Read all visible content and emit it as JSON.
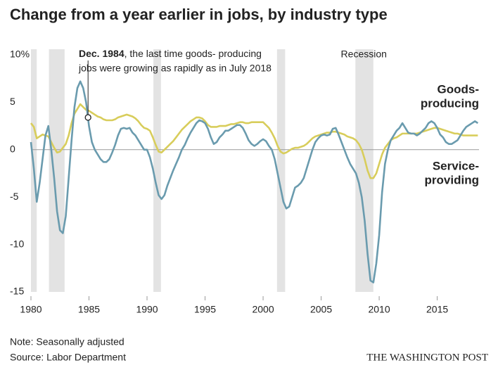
{
  "chart_data": {
    "type": "line",
    "title": "Change from a year earlier in jobs, by industry type",
    "xlim": [
      1980,
      2018.6
    ],
    "xticks": [
      1980,
      1985,
      1990,
      1995,
      2000,
      2005,
      2010,
      2015
    ],
    "ylim": [
      -15,
      10
    ],
    "yticks": [
      {
        "value": 10,
        "label": "10%"
      },
      5,
      0,
      -5,
      -10,
      -15
    ],
    "grid": false,
    "x": [
      1980,
      1980.25,
      1980.5,
      1980.75,
      1981,
      1981.25,
      1981.5,
      1981.75,
      1982,
      1982.25,
      1982.5,
      1982.75,
      1983,
      1983.25,
      1983.5,
      1983.75,
      1984,
      1984.25,
      1984.5,
      1984.75,
      1985,
      1985.25,
      1985.5,
      1985.75,
      1986,
      1986.25,
      1986.5,
      1986.75,
      1987,
      1987.25,
      1987.5,
      1987.75,
      1988,
      1988.25,
      1988.5,
      1988.75,
      1989,
      1989.25,
      1989.5,
      1989.75,
      1990,
      1990.25,
      1990.5,
      1990.75,
      1991,
      1991.25,
      1991.5,
      1991.75,
      1992,
      1992.25,
      1992.5,
      1992.75,
      1993,
      1993.25,
      1993.5,
      1993.75,
      1994,
      1994.25,
      1994.5,
      1994.75,
      1995,
      1995.25,
      1995.5,
      1995.75,
      1996,
      1996.25,
      1996.5,
      1996.75,
      1997,
      1997.25,
      1997.5,
      1997.75,
      1998,
      1998.25,
      1998.5,
      1998.75,
      1999,
      1999.25,
      1999.5,
      1999.75,
      2000,
      2000.25,
      2000.5,
      2000.75,
      2001,
      2001.25,
      2001.5,
      2001.75,
      2002,
      2002.25,
      2002.5,
      2002.75,
      2003,
      2003.25,
      2003.5,
      2003.75,
      2004,
      2004.25,
      2004.5,
      2004.75,
      2005,
      2005.25,
      2005.5,
      2005.75,
      2006,
      2006.25,
      2006.5,
      2006.75,
      2007,
      2007.25,
      2007.5,
      2007.75,
      2008,
      2008.25,
      2008.5,
      2008.75,
      2009,
      2009.25,
      2009.5,
      2009.75,
      2010,
      2010.25,
      2010.5,
      2010.75,
      2011,
      2011.25,
      2011.5,
      2011.75,
      2012,
      2012.25,
      2012.5,
      2012.75,
      2013,
      2013.25,
      2013.5,
      2013.75,
      2014,
      2014.25,
      2014.5,
      2014.75,
      2015,
      2015.25,
      2015.5,
      2015.75,
      2016,
      2016.25,
      2016.5,
      2016.75,
      2017,
      2017.25,
      2017.5,
      2017.75,
      2018,
      2018.25,
      2018.5
    ],
    "series": [
      {
        "name": [
          "Goods-",
          "producing"
        ],
        "color": "#6a9bae",
        "values": [
          0.8,
          -2,
          -5.5,
          -3.5,
          -1,
          1.5,
          2.5,
          0,
          -3,
          -6.5,
          -8.5,
          -8.8,
          -7,
          -3,
          1,
          4.5,
          6.5,
          7.2,
          6.5,
          5,
          2.5,
          0.8,
          0,
          -0.5,
          -1,
          -1.3,
          -1.3,
          -1,
          -0.3,
          0.5,
          1.5,
          2.2,
          2.3,
          2.2,
          2.3,
          1.8,
          1.5,
          1,
          0.5,
          0,
          0,
          -0.8,
          -2,
          -3.5,
          -4.8,
          -5.2,
          -4.8,
          -3.8,
          -3,
          -2.2,
          -1.5,
          -0.8,
          0,
          0.5,
          1.2,
          1.8,
          2.3,
          2.8,
          3.1,
          3,
          2.8,
          2.2,
          1.3,
          0.6,
          0.8,
          1.3,
          1.6,
          2,
          2,
          2.2,
          2.4,
          2.6,
          2.6,
          2.3,
          1.7,
          1,
          0.6,
          0.4,
          0.6,
          0.9,
          1.1,
          0.9,
          0.4,
          0,
          -1,
          -2.5,
          -4,
          -5.5,
          -6.2,
          -6,
          -5,
          -4,
          -3.8,
          -3.5,
          -3,
          -2,
          -1,
          0,
          0.8,
          1.2,
          1.5,
          1.6,
          1.5,
          1.6,
          2.2,
          2.3,
          1.6,
          0.8,
          0,
          -0.8,
          -1.5,
          -2,
          -2.5,
          -3.5,
          -5,
          -7.5,
          -11,
          -13.8,
          -14,
          -12,
          -9,
          -4.5,
          -1.5,
          0,
          1,
          1.5,
          2,
          2.3,
          2.8,
          2.3,
          1.8,
          1.7,
          1.7,
          1.5,
          1.7,
          2,
          2.3,
          2.8,
          3,
          2.8,
          2.3,
          1.6,
          1.3,
          0.8,
          0.6,
          0.6,
          0.8,
          1,
          1.5,
          2,
          2.4,
          2.6,
          2.8,
          3,
          2.8
        ]
      },
      {
        "name": [
          "Service-",
          "providing"
        ],
        "color": "#d8cd5b",
        "values": [
          2.8,
          2.4,
          1.2,
          1.4,
          1.6,
          1.5,
          1.4,
          0.8,
          0.2,
          -0.3,
          -0.2,
          0.2,
          0.6,
          1.5,
          2.8,
          3.8,
          4.3,
          4.8,
          4.5,
          4.2,
          4.1,
          3.9,
          3.7,
          3.5,
          3.4,
          3.2,
          3.1,
          3.1,
          3.1,
          3.2,
          3.4,
          3.5,
          3.6,
          3.7,
          3.6,
          3.5,
          3.3,
          3,
          2.6,
          2.3,
          2.2,
          2,
          1.3,
          0.5,
          -0.2,
          -0.3,
          0,
          0.3,
          0.6,
          0.9,
          1.3,
          1.7,
          2.1,
          2.4,
          2.7,
          3,
          3.2,
          3.4,
          3.4,
          3.3,
          3,
          2.6,
          2.4,
          2.4,
          2.4,
          2.5,
          2.5,
          2.5,
          2.6,
          2.7,
          2.7,
          2.8,
          2.9,
          2.9,
          2.8,
          2.8,
          2.9,
          2.9,
          2.9,
          2.9,
          2.9,
          2.6,
          2.3,
          1.8,
          1.2,
          0.4,
          -0.2,
          -0.4,
          -0.3,
          -0.1,
          0.1,
          0.2,
          0.2,
          0.3,
          0.4,
          0.6,
          0.9,
          1.2,
          1.4,
          1.5,
          1.6,
          1.7,
          1.8,
          1.8,
          1.9,
          1.9,
          1.8,
          1.7,
          1.6,
          1.4,
          1.3,
          1.2,
          1,
          0.6,
          0,
          -1,
          -2.2,
          -3,
          -3,
          -2.5,
          -1.5,
          -0.5,
          0.2,
          0.6,
          1,
          1.2,
          1.3,
          1.5,
          1.7,
          1.7,
          1.7,
          1.7,
          1.7,
          1.7,
          1.8,
          1.9,
          2,
          2.1,
          2.2,
          2.3,
          2.3,
          2.2,
          2.1,
          2,
          1.9,
          1.8,
          1.7,
          1.7,
          1.6,
          1.5,
          1.5,
          1.5,
          1.5,
          1.5,
          1.5
        ]
      }
    ],
    "recession_label": "Recession",
    "recessions": [
      [
        1980,
        1980.5
      ],
      [
        1981.55,
        1982.9
      ],
      [
        1990.55,
        1991.2
      ],
      [
        2001.2,
        2001.9
      ],
      [
        2007.95,
        2009.5
      ]
    ],
    "annotation": {
      "x": 1984.92,
      "y": 3.4,
      "bold": "Dec. 1984",
      "lines": [
        ", the last time goods- producing",
        "jobs were growing as rapidly as in July 2018"
      ]
    },
    "note": "Note: Seasonally adjusted",
    "source": "Source: Labor Department",
    "credit": "THE WASHINGTON POST"
  }
}
